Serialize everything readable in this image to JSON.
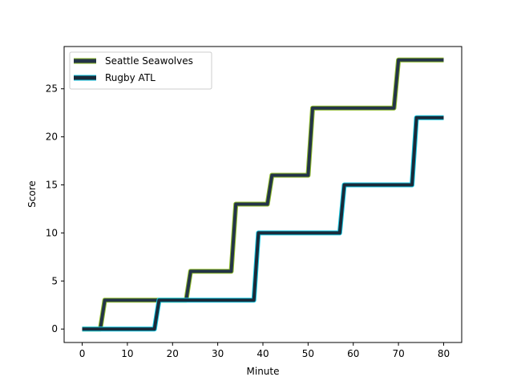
{
  "chart_data": {
    "type": "line",
    "title": "",
    "xlabel": "Minute",
    "ylabel": "Score",
    "xlim": [
      -4,
      84
    ],
    "ylim": [
      -1.4,
      29.4
    ],
    "xticks": [
      0,
      10,
      20,
      30,
      40,
      50,
      60,
      70,
      80
    ],
    "yticks": [
      0,
      5,
      10,
      15,
      20,
      25
    ],
    "legend_position": "top-left",
    "grid": false,
    "series": [
      {
        "name": "Seattle Seawolves",
        "color": "#243447",
        "edge_color": "#8fbc2a",
        "x": [
          0,
          4,
          5,
          23,
          24,
          33,
          34,
          41,
          42,
          50,
          51,
          69,
          70,
          80
        ],
        "values": [
          0,
          0,
          3,
          3,
          6,
          6,
          13,
          13,
          16,
          16,
          23,
          23,
          28,
          28
        ]
      },
      {
        "name": "Rugby ATL",
        "color": "#1a2a3a",
        "edge_color": "#13c6e0",
        "x": [
          0,
          16,
          17,
          38,
          39,
          57,
          58,
          73,
          74,
          80
        ],
        "values": [
          0,
          0,
          3,
          3,
          10,
          10,
          15,
          15,
          22,
          22
        ]
      }
    ]
  }
}
